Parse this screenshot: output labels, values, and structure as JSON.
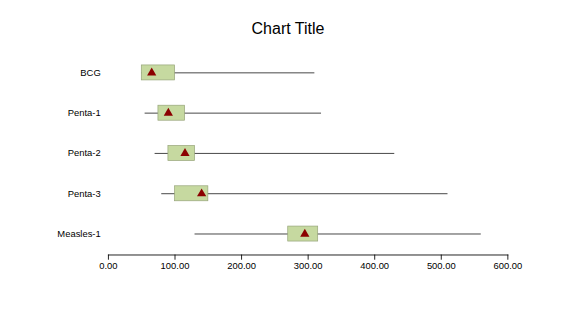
{
  "chart_data": {
    "type": "range",
    "orientation": "horizontal",
    "title": "Chart Title",
    "categories": [
      "BCG",
      "Penta-1",
      "Penta-2",
      "Penta-3",
      "Measles-1"
    ],
    "boxes": {
      "low": [
        50,
        75,
        90,
        100,
        270
      ],
      "high": [
        100,
        115,
        130,
        150,
        315
      ],
      "color": "#c6d9a0"
    },
    "whiskers": {
      "low": [
        50,
        55,
        70,
        80,
        130
      ],
      "high": [
        310,
        320,
        430,
        510,
        560
      ],
      "color": "#2a2a2a"
    },
    "markers": {
      "values": [
        65,
        90,
        115,
        140,
        295
      ],
      "color": "#8b0000",
      "marker": "triangle"
    },
    "xlim": [
      0,
      600
    ],
    "xticks": [
      {
        "value": 0,
        "label": "0.00"
      },
      {
        "value": 100,
        "label": "100.00"
      },
      {
        "value": 200,
        "label": "200.00"
      },
      {
        "value": 300,
        "label": "300.00"
      },
      {
        "value": 400,
        "label": "400.00"
      },
      {
        "value": 500,
        "label": "500.00"
      },
      {
        "value": 600,
        "label": "600.00"
      }
    ],
    "grid": false
  }
}
